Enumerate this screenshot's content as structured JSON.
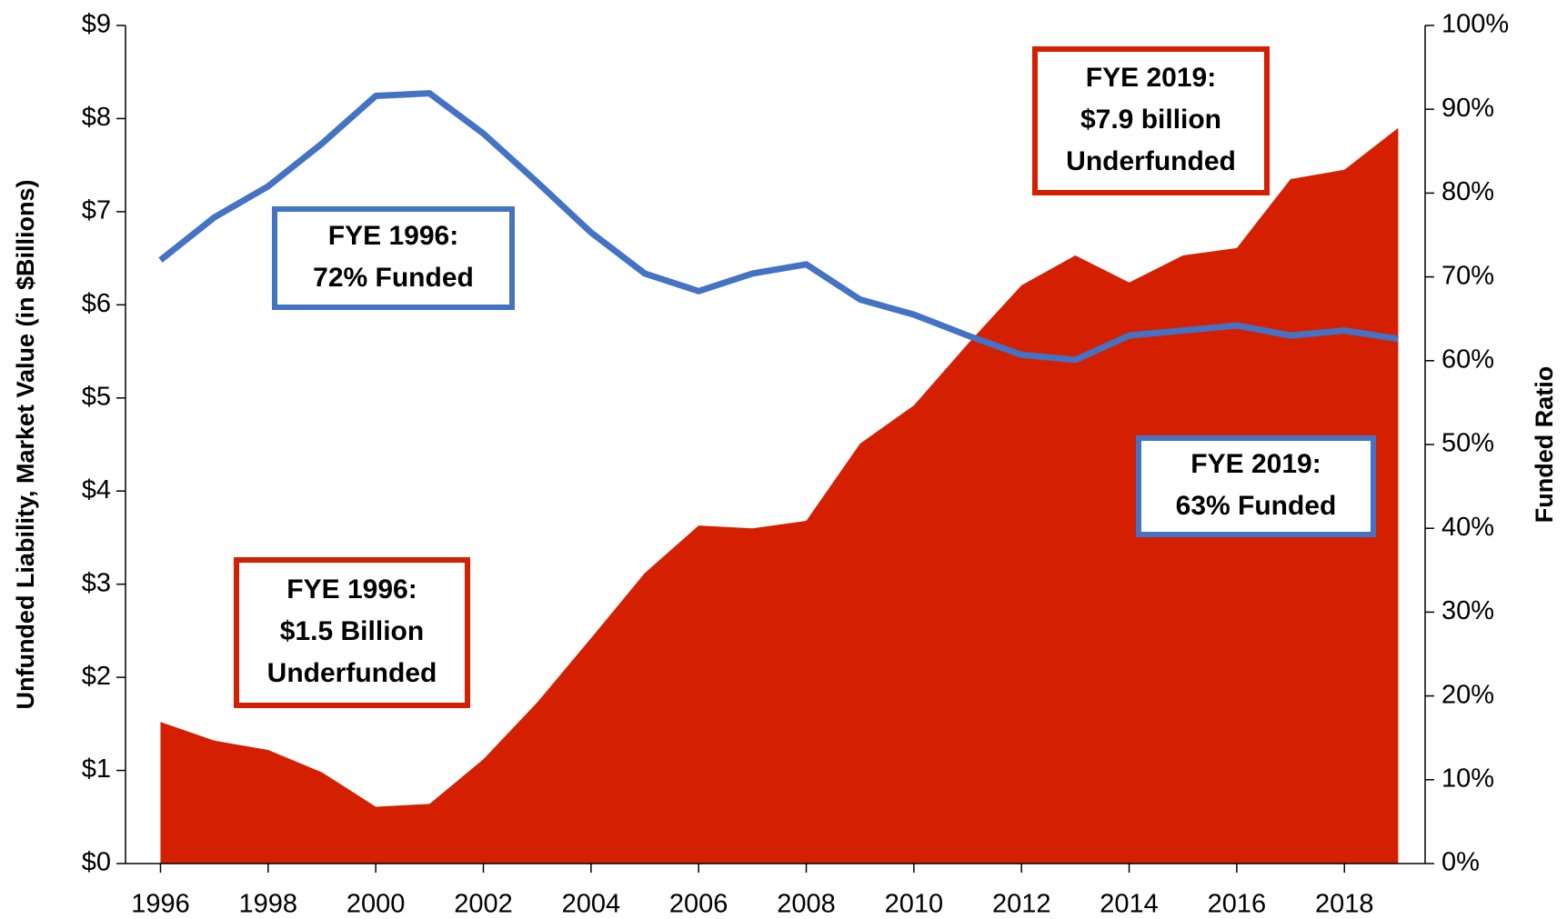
{
  "chart_data": {
    "type": "line",
    "y_label": "Unfunded Liability, Market Value (in $Billions)",
    "y2_label": "Funded Ratio",
    "x": [
      1996,
      1997,
      1998,
      1999,
      2000,
      2001,
      2002,
      2003,
      2004,
      2005,
      2006,
      2007,
      2008,
      2009,
      2010,
      2011,
      2012,
      2013,
      2014,
      2015,
      2016,
      2017,
      2018,
      2019
    ],
    "series": [
      {
        "type": "area",
        "color": "#d42000",
        "values": [
          1.52,
          1.32,
          1.22,
          0.98,
          0.61,
          0.64,
          1.12,
          1.73,
          2.42,
          3.12,
          3.63,
          3.6,
          3.68,
          4.51,
          4.92,
          5.58,
          6.21,
          6.53,
          6.24,
          6.53,
          6.61,
          7.35,
          7.45,
          7.9
        ]
      },
      {
        "type": "line",
        "color": "#4472c4",
        "axis": "y2",
        "values": [
          72.0,
          77.1,
          80.8,
          85.9,
          91.6,
          91.9,
          87.1,
          81.3,
          75.3,
          70.4,
          68.3,
          70.4,
          71.5,
          67.3,
          65.5,
          63.0,
          60.7,
          60.1,
          63.0,
          63.6,
          64.2,
          63.0,
          63.6,
          62.6
        ]
      }
    ],
    "xlim": [
      1995.35,
      2019.5
    ],
    "xticks": [
      1996,
      1998,
      2000,
      2002,
      2004,
      2006,
      2008,
      2010,
      2012,
      2014,
      2016,
      2018
    ],
    "ylim": [
      0,
      9
    ],
    "yticks": [
      {
        "value": 0,
        "label": "$0"
      },
      {
        "value": 1,
        "label": "$1"
      },
      {
        "value": 2,
        "label": "$2"
      },
      {
        "value": 3,
        "label": "$3"
      },
      {
        "value": 4,
        "label": "$4"
      },
      {
        "value": 5,
        "label": "$5"
      },
      {
        "value": 6,
        "label": "$6"
      },
      {
        "value": 7,
        "label": "$7"
      },
      {
        "value": 8,
        "label": "$8"
      },
      {
        "value": 9,
        "label": "$9"
      }
    ],
    "y2lim": [
      0,
      100
    ],
    "y2ticks": [
      {
        "value": 0,
        "label": "0%"
      },
      {
        "value": 10,
        "label": "10%"
      },
      {
        "value": 20,
        "label": "20%"
      },
      {
        "value": 30,
        "label": "30%"
      },
      {
        "value": 40,
        "label": "40%"
      },
      {
        "value": 50,
        "label": "50%"
      },
      {
        "value": 60,
        "label": "60%"
      },
      {
        "value": 70,
        "label": "70%"
      },
      {
        "value": 80,
        "label": "80%"
      },
      {
        "value": 90,
        "label": "90%"
      },
      {
        "value": 100,
        "label": "100%"
      }
    ],
    "annotations": [
      {
        "color": "#d42000",
        "lines": [
          "FYE 2019:",
          "$7.9 billion",
          "Underfunded"
        ]
      },
      {
        "color": "#4472c4",
        "lines": [
          "FYE 1996:",
          "72% Funded"
        ]
      },
      {
        "color": "#4472c4",
        "lines": [
          "FYE 2019:",
          "63% Funded"
        ]
      },
      {
        "color": "#d42000",
        "lines": [
          "FYE 1996:",
          "$1.5 Billion",
          "Underfunded"
        ]
      }
    ]
  }
}
